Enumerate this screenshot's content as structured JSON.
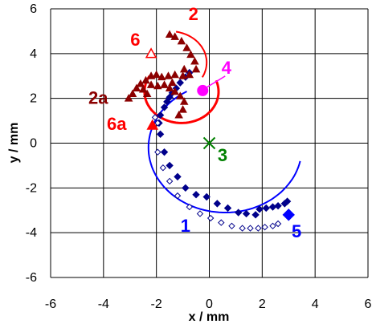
{
  "chart_data": {
    "type": "scatter",
    "xlabel": "x / mm",
    "ylabel": "y / mm",
    "xlim": [
      -6,
      6
    ],
    "ylim": [
      -6,
      6
    ],
    "xticks": [
      -6,
      -4,
      -2,
      0,
      2,
      4,
      6
    ],
    "yticks": [
      -6,
      -4,
      -2,
      0,
      2,
      4,
      6
    ],
    "grid": true,
    "colors": {
      "blue": "#0000ff",
      "navy": "#00008b",
      "red": "#ff0000",
      "brown": "#8b0000",
      "magenta": "#ff00ff",
      "green": "#008000"
    },
    "markers": {
      "filled_diamonds": [
        [
          -1.9,
          0.9
        ],
        [
          -1.85,
          0.4
        ],
        [
          -1.7,
          -0.4
        ],
        [
          -1.5,
          -1.0
        ],
        [
          -1.2,
          -1.5
        ],
        [
          -0.9,
          -2.0
        ],
        [
          -0.5,
          -2.3
        ],
        [
          -0.1,
          -2.4
        ],
        [
          0.3,
          -2.7
        ],
        [
          0.7,
          -2.9
        ],
        [
          1.1,
          -3.1
        ],
        [
          1.4,
          -3.15
        ],
        [
          1.75,
          -3.2
        ],
        [
          1.9,
          -2.95
        ],
        [
          2.15,
          -2.9
        ],
        [
          2.4,
          -2.85
        ],
        [
          2.6,
          -2.8
        ],
        [
          2.85,
          -2.7
        ],
        [
          2.95,
          -2.6
        ],
        [
          -1.85,
          1.25
        ],
        [
          -1.7,
          1.6
        ],
        [
          -1.6,
          1.85
        ],
        [
          -1.5,
          2.05
        ],
        [
          -1.4,
          2.25
        ],
        [
          -1.25,
          2.45
        ],
        [
          -1.1,
          2.7
        ],
        [
          -0.9,
          2.95
        ],
        [
          -0.75,
          3.15
        ]
      ],
      "open_diamonds": [
        [
          -2.05,
          1.15
        ],
        [
          -1.95,
          -0.4
        ],
        [
          -1.75,
          -1.1
        ],
        [
          -1.5,
          -1.7
        ],
        [
          -1.2,
          -2.35
        ],
        [
          -0.75,
          -2.85
        ],
        [
          -0.35,
          -3.15
        ],
        [
          0.05,
          -3.35
        ],
        [
          0.45,
          -3.55
        ],
        [
          0.85,
          -3.7
        ],
        [
          1.25,
          -3.8
        ],
        [
          1.55,
          -3.8
        ],
        [
          1.85,
          -3.8
        ],
        [
          2.1,
          -3.75
        ],
        [
          2.4,
          -3.7
        ],
        [
          2.6,
          -3.6
        ],
        [
          -1.95,
          0.9
        ]
      ],
      "triangles": [
        [
          -1.5,
          4.85
        ],
        [
          -1.3,
          4.75
        ],
        [
          -1.05,
          4.55
        ],
        [
          -0.85,
          4.25
        ],
        [
          -0.7,
          3.95
        ],
        [
          -0.55,
          3.65
        ],
        [
          -0.5,
          3.3
        ],
        [
          -0.75,
          3.05
        ],
        [
          -1.0,
          3.0
        ],
        [
          -1.3,
          3.05
        ],
        [
          -1.55,
          3.0
        ],
        [
          -1.8,
          2.95
        ],
        [
          -2.0,
          3.05
        ],
        [
          -2.2,
          3.0
        ],
        [
          -2.4,
          2.8
        ],
        [
          -2.6,
          2.65
        ],
        [
          -2.75,
          2.45
        ],
        [
          -2.9,
          2.2
        ],
        [
          -3.05,
          2.0
        ],
        [
          -2.5,
          2.4
        ],
        [
          -2.2,
          2.6
        ],
        [
          -1.95,
          2.55
        ],
        [
          -1.7,
          2.6
        ],
        [
          -1.5,
          2.45
        ],
        [
          -1.3,
          2.3
        ],
        [
          -1.1,
          2.1
        ],
        [
          -0.95,
          1.85
        ],
        [
          -1.0,
          1.5
        ],
        [
          -1.15,
          1.25
        ],
        [
          -2.35,
          2.2
        ],
        [
          -1.4,
          2.7
        ],
        [
          -0.95,
          3.3
        ]
      ],
      "point_4": [
        -0.25,
        2.35
      ],
      "point_3": [
        0.0,
        0.0
      ],
      "point_5": [
        3.0,
        -3.2
      ],
      "point_6": [
        -2.2,
        4.0
      ],
      "point_6a": [
        -2.15,
        0.8
      ]
    },
    "annotations": [
      {
        "text": "1",
        "color": "#0000ff"
      },
      {
        "text": "2",
        "color": "#ff0000"
      },
      {
        "text": "2a",
        "color": "#8b0000"
      },
      {
        "text": "3",
        "color": "#008000"
      },
      {
        "text": "4",
        "color": "#ff00ff"
      },
      {
        "text": "5",
        "color": "#0000ff"
      },
      {
        "text": "6",
        "color": "#ff0000"
      },
      {
        "text": "6a",
        "color": "#ff0000"
      }
    ]
  }
}
